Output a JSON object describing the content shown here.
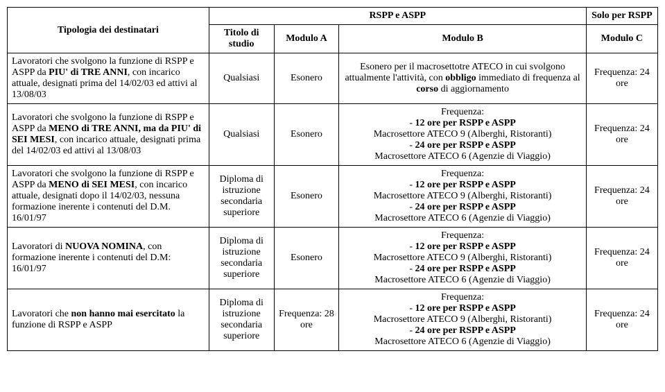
{
  "header": {
    "group_rspp_aspp": "RSPP e ASPP",
    "group_solo_rspp": "Solo per RSPP",
    "col_tipologia": "Tipologia dei destinatari",
    "col_titolo": "Titolo di studio",
    "col_moda": "Modulo A",
    "col_modb": "Modulo B",
    "col_modc": "Modulo C"
  },
  "rows": [
    {
      "tipologia": "Lavoratori che svolgono la funzione di RSPP e ASPP da PIU' di TRE ANNI, con incarico attuale, designati prima del 14/02/03 ed attivi al 13/08/03",
      "bold_frag": "PIU' di TRE ANNI",
      "pre": "Lavoratori che svolgono la funzione di RSPP e ASPP da ",
      "post": ", con incarico attuale, designati prima del 14/02/03 ed attivi al 13/08/03",
      "titolo": "Qualsiasi",
      "moda": "Esonero",
      "modb_lines": [
        "Esonero per il macrosettotre ATECO in cui svolgono attualmente l'attività, con",
        "immediato di frequenza al",
        "di aggiornamento"
      ],
      "modb_bold1": "obbligo",
      "modb_bold2": "corso",
      "modc": "Frequenza: 24 ore"
    },
    {
      "pre": "Lavoratori che svolgono la funzione di RSPP e ASPP da ",
      "bold_frag": "MENO di TRE ANNI, ma da PIU' di SEI MESI",
      "post": ", con incarico attuale, designati prima del 14/02/03 ed attivi al 13/08/03",
      "titolo": "Qualsiasi",
      "moda": "Esonero",
      "modb_block": {
        "l1": "Frequenza:",
        "l2a": "- ",
        "l2b": "12 ore per RSPP e ASPP",
        "l3": "Macrosettore ATECO 9 (Alberghi, Ristoranti)",
        "l4a": "- ",
        "l4b": "24 ore per RSPP e ASPP",
        "l5": "Macrosettore ATECO 6 (Agenzie di Viaggio)"
      },
      "modc": "Frequenza: 24 ore"
    },
    {
      "pre": "Lavoratori che svolgono la funzione di RSPP e ASPP da ",
      "bold_frag": "MENO di SEI MESI",
      "post": ", con incarico attuale, designati dopo il 14/02/03, nessuna formazione inerente i contenuti del D.M. 16/01/97",
      "titolo": "Diploma di istruzione secondaria superiore",
      "moda": "Esonero",
      "modb_block": {
        "l1": "Frequenza:",
        "l2a": "- ",
        "l2b": "12 ore per RSPP e ASPP",
        "l3": "Macrosettore ATECO 9 (Alberghi, Ristoranti)",
        "l4a": "- ",
        "l4b": "24 ore per RSPP e ASPP",
        "l5": "Macrosettore ATECO 6 (Agenzie di Viaggio)"
      },
      "modc": "Frequenza: 24 ore"
    },
    {
      "pre": "Lavoratori di ",
      "bold_frag": "NUOVA NOMINA",
      "post": ", con formazione inerente i contenuti del D.M: 16/01/97",
      "titolo": "Diploma di istruzione secondaria superiore",
      "moda": "Esonero",
      "modb_block": {
        "l1": "Frequenza:",
        "l2a": "- ",
        "l2b": "12 ore per RSPP e ASPP",
        "l3": "Macrosettore ATECO 9 (Alberghi, Ristoranti)",
        "l4a": "- ",
        "l4b": "24 ore per RSPP e ASPP",
        "l5": "Macrosettore ATECO 6 (Agenzie di Viaggio)"
      },
      "modc": "Frequenza: 24 ore"
    },
    {
      "pre": "Lavoratori che ",
      "bold_frag": "non hanno mai esercitato",
      "post": " la funzione di RSPP e ASPP",
      "titolo": "Diploma di istruzione secondaria superiore",
      "moda": "Frequenza: 28 ore",
      "modb_block": {
        "l1": "Frequenza:",
        "l2a": "- ",
        "l2b": "12 ore per RSPP e ASPP",
        "l3": "Macrosettore ATECO 9 (Alberghi, Ristoranti)",
        "l4a": "- ",
        "l4b": "24 ore per RSPP e ASPP",
        "l5": "Macrosettore ATECO 6 (Agenzie di Viaggio)"
      },
      "modc": "Frequenza: 24 ore"
    }
  ]
}
